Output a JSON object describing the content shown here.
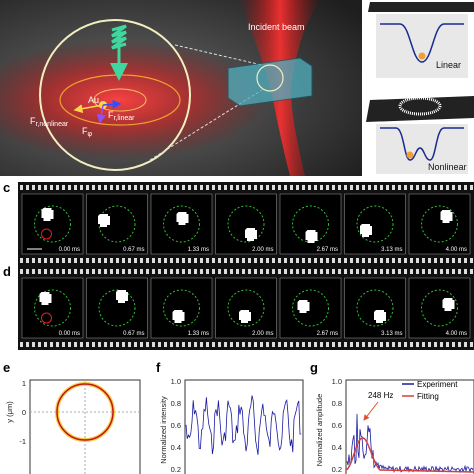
{
  "panel_a": {
    "beam_label": "Incident beam",
    "particle": "Au",
    "forces": [
      {
        "main": "F",
        "sub": "r,nonlinear"
      },
      {
        "main": "F",
        "sub": "r,linear"
      },
      {
        "main": "F",
        "sub": "φ"
      }
    ]
  },
  "panel_b": {
    "linear": "Linear",
    "nonlinear": "Nonlinear"
  },
  "panel_c": {
    "label": "c",
    "times": [
      "0.00 ms",
      "0.67 ms",
      "1.33 ms",
      "2.00 ms",
      "2.67 ms",
      "3.13 ms",
      "4.00 ms"
    ]
  },
  "panel_d": {
    "label": "d",
    "times": [
      "0.00 ms",
      "0.67 ms",
      "1.33 ms",
      "2.00 ms",
      "2.67 ms",
      "3.13 ms",
      "4.00 ms"
    ]
  },
  "panel_e": {
    "label": "e",
    "y_axis": "y (μm)",
    "yticks": [
      "1",
      "0",
      "-1"
    ]
  },
  "panel_f": {
    "label": "f",
    "y_axis": "Normalized intensity",
    "yticks": [
      "1.0",
      "0.8",
      "0.6",
      "0.4",
      "0.2"
    ]
  },
  "panel_g": {
    "label": "g",
    "y_axis": "Normalized amplitude",
    "yticks": [
      "1.0",
      "0.8",
      "0.6",
      "0.4",
      "0.2"
    ],
    "annotation": "248 Hz",
    "legend": [
      "Experiment",
      "Fitting"
    ]
  }
}
